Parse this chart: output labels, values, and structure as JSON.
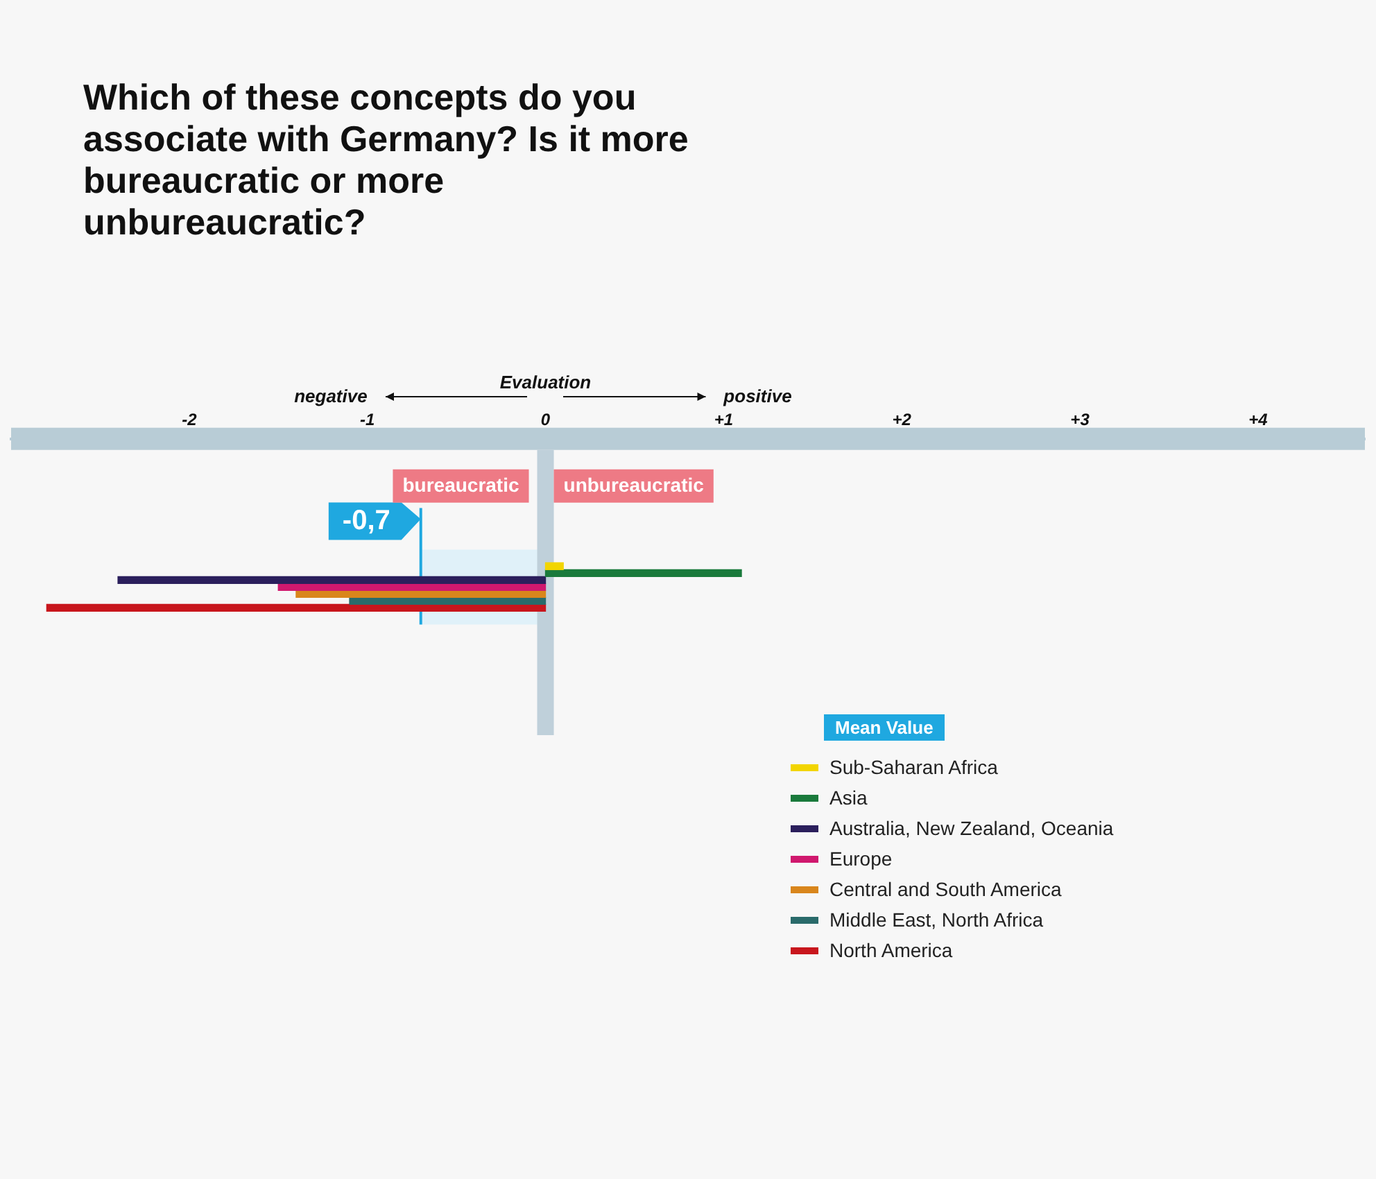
{
  "chart_data": {
    "type": "bar",
    "orientation": "horizontal",
    "title": "Which of these concepts do you associate with Germany? Is it more bureaucratic or more unbureaucratic?",
    "categories": [
      null
    ],
    "series": [
      {
        "name": "Sub-Saharan Africa",
        "color": "#f2d500",
        "values": [
          0.1
        ]
      },
      {
        "name": "Asia",
        "color": "#1a7a3c",
        "values": [
          1.1
        ]
      },
      {
        "name": "Australia, New Zealand, Oceania",
        "color": "#2b1f5c",
        "values": [
          -2.4
        ]
      },
      {
        "name": "Europe",
        "color": "#d0186e",
        "values": [
          -1.5
        ]
      },
      {
        "name": "Central and South America",
        "color": "#d9861c",
        "values": [
          -1.4
        ]
      },
      {
        "name": "Middle East, North Africa",
        "color": "#2a6b6b",
        "values": [
          -1.1
        ]
      },
      {
        "name": "North America",
        "color": "#c8161d",
        "values": [
          -2.8
        ]
      }
    ],
    "xlim": [
      -3,
      4.6
    ],
    "xticks": [
      {
        "value": -2,
        "label": "-2"
      },
      {
        "value": -1,
        "label": "-1"
      },
      {
        "value": 0,
        "label": "0"
      },
      {
        "value": 1,
        "label": "+1"
      },
      {
        "value": 2,
        "label": "+2"
      },
      {
        "value": 3,
        "label": "+3"
      },
      {
        "value": 4,
        "label": "+4"
      }
    ],
    "tick_labels": "x",
    "grid": false,
    "legend": "bottom right",
    "ref_lines": [
      {
        "axis": "x",
        "value": 0,
        "label": null,
        "color": "#bfd0da"
      },
      {
        "axis": "x",
        "value": -0.7,
        "label": "-0,7",
        "color": "#1fa8e0"
      }
    ],
    "bands": [
      {
        "axis": "x",
        "from": -0.7,
        "to": 0,
        "color": "#d6eef9"
      }
    ],
    "annotations": [
      "Evaluation",
      "negative",
      "positive",
      "bureaucratic",
      "unbureaucratic",
      "Mean Value"
    ]
  }
}
